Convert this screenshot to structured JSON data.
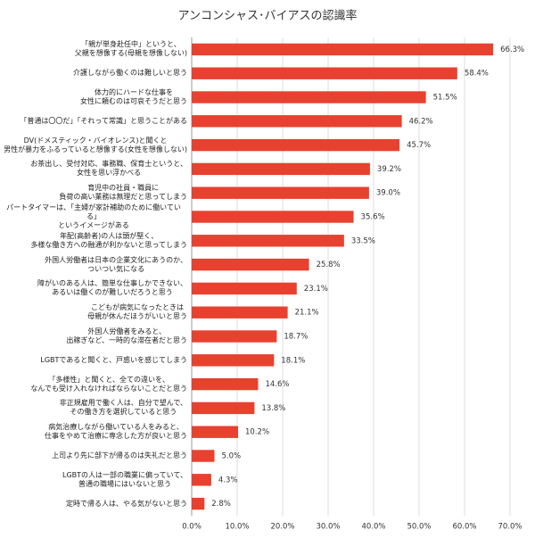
{
  "chart_data": {
    "type": "bar",
    "orientation": "horizontal",
    "title": "アンコンシャス･バイアスの認識率",
    "categories": [
      "「親が単身赴任中」というと、\n父親を想像する(母親を想像しない)",
      "介護しながら働くのは難しいと思う",
      "体力的にハードな仕事を\n女性に頼むのは可哀そうだと思う",
      "「普通は〇〇だ」「それって常識」と思うことがある",
      "DV(ドメスティック・バイオレンス)と聞くと\n男性が暴力をふるっていると想像する(女性を想像しない)",
      "お茶出し、受付対応、事務職、保育士というと、\n女性を思い浮かべる",
      "育児中の社員・職員に\n負荷の高い業務は無理だと思ってしまう",
      "パートタイマーは、「主婦が家計補助のために働いている」\nというイメージがある",
      "年配(高齢者)の人は頭が堅く、\n多様な働き方への融通が利かないと思ってしまう",
      "外国人労働者は日本の企業文化にあうのか、\nついつい気になる",
      "障がいのある人は、簡単な仕事しかできない、\nあるいは働くのが難しいだろうと思う",
      "こどもが病気になったときは\n母親が休んだほうがいいと思う",
      "外国人労働者をみると、\n出稼ぎなど、一時的な滞在者だと思う",
      "LGBTであると聞くと、戸惑いを感じてしまう",
      "「多様性」と聞くと、全ての違いを、\nなんでも受け入れなければならないことだと思う",
      "非正規雇用で働く人は、自分で望んで、\nその働き方を選択していると思う",
      "病気治療しながら働いている人をみると、\n仕事をやめて治療に専念した方が良いと思う",
      "上司より先に部下が帰るのは失礼だと思う",
      "LGBTの人は一部の職業に偏っていて、\n普通の職場にはいないと思う",
      "定時で帰る人は、やる気がないと思う"
    ],
    "values": [
      66.3,
      58.4,
      51.5,
      46.2,
      45.7,
      39.2,
      39.0,
      35.6,
      33.5,
      25.8,
      23.1,
      21.1,
      18.7,
      18.1,
      14.6,
      13.8,
      10.2,
      5.0,
      4.3,
      2.8
    ],
    "value_labels": [
      "66.3%",
      "58.4%",
      "51.5%",
      "46.2%",
      "45.7%",
      "39.2%",
      "39.0%",
      "35.6%",
      "33.5%",
      "25.8%",
      "23.1%",
      "21.1%",
      "18.7%",
      "18.1%",
      "14.6%",
      "13.8%",
      "10.2%",
      "5.0%",
      "4.3%",
      "2.8%"
    ],
    "color": "#e8412f",
    "xlim": [
      0,
      70
    ],
    "xticks": [
      {
        "value": 0,
        "label": "0.0%"
      },
      {
        "value": 10,
        "label": "10.0%"
      },
      {
        "value": 20,
        "label": "20.0%"
      },
      {
        "value": 30,
        "label": "30.0%"
      },
      {
        "value": 40,
        "label": "40.0%"
      },
      {
        "value": 50,
        "label": "50.0%"
      },
      {
        "value": 60,
        "label": "60.0%"
      },
      {
        "value": 70,
        "label": "70.0%"
      }
    ],
    "grid": true
  }
}
